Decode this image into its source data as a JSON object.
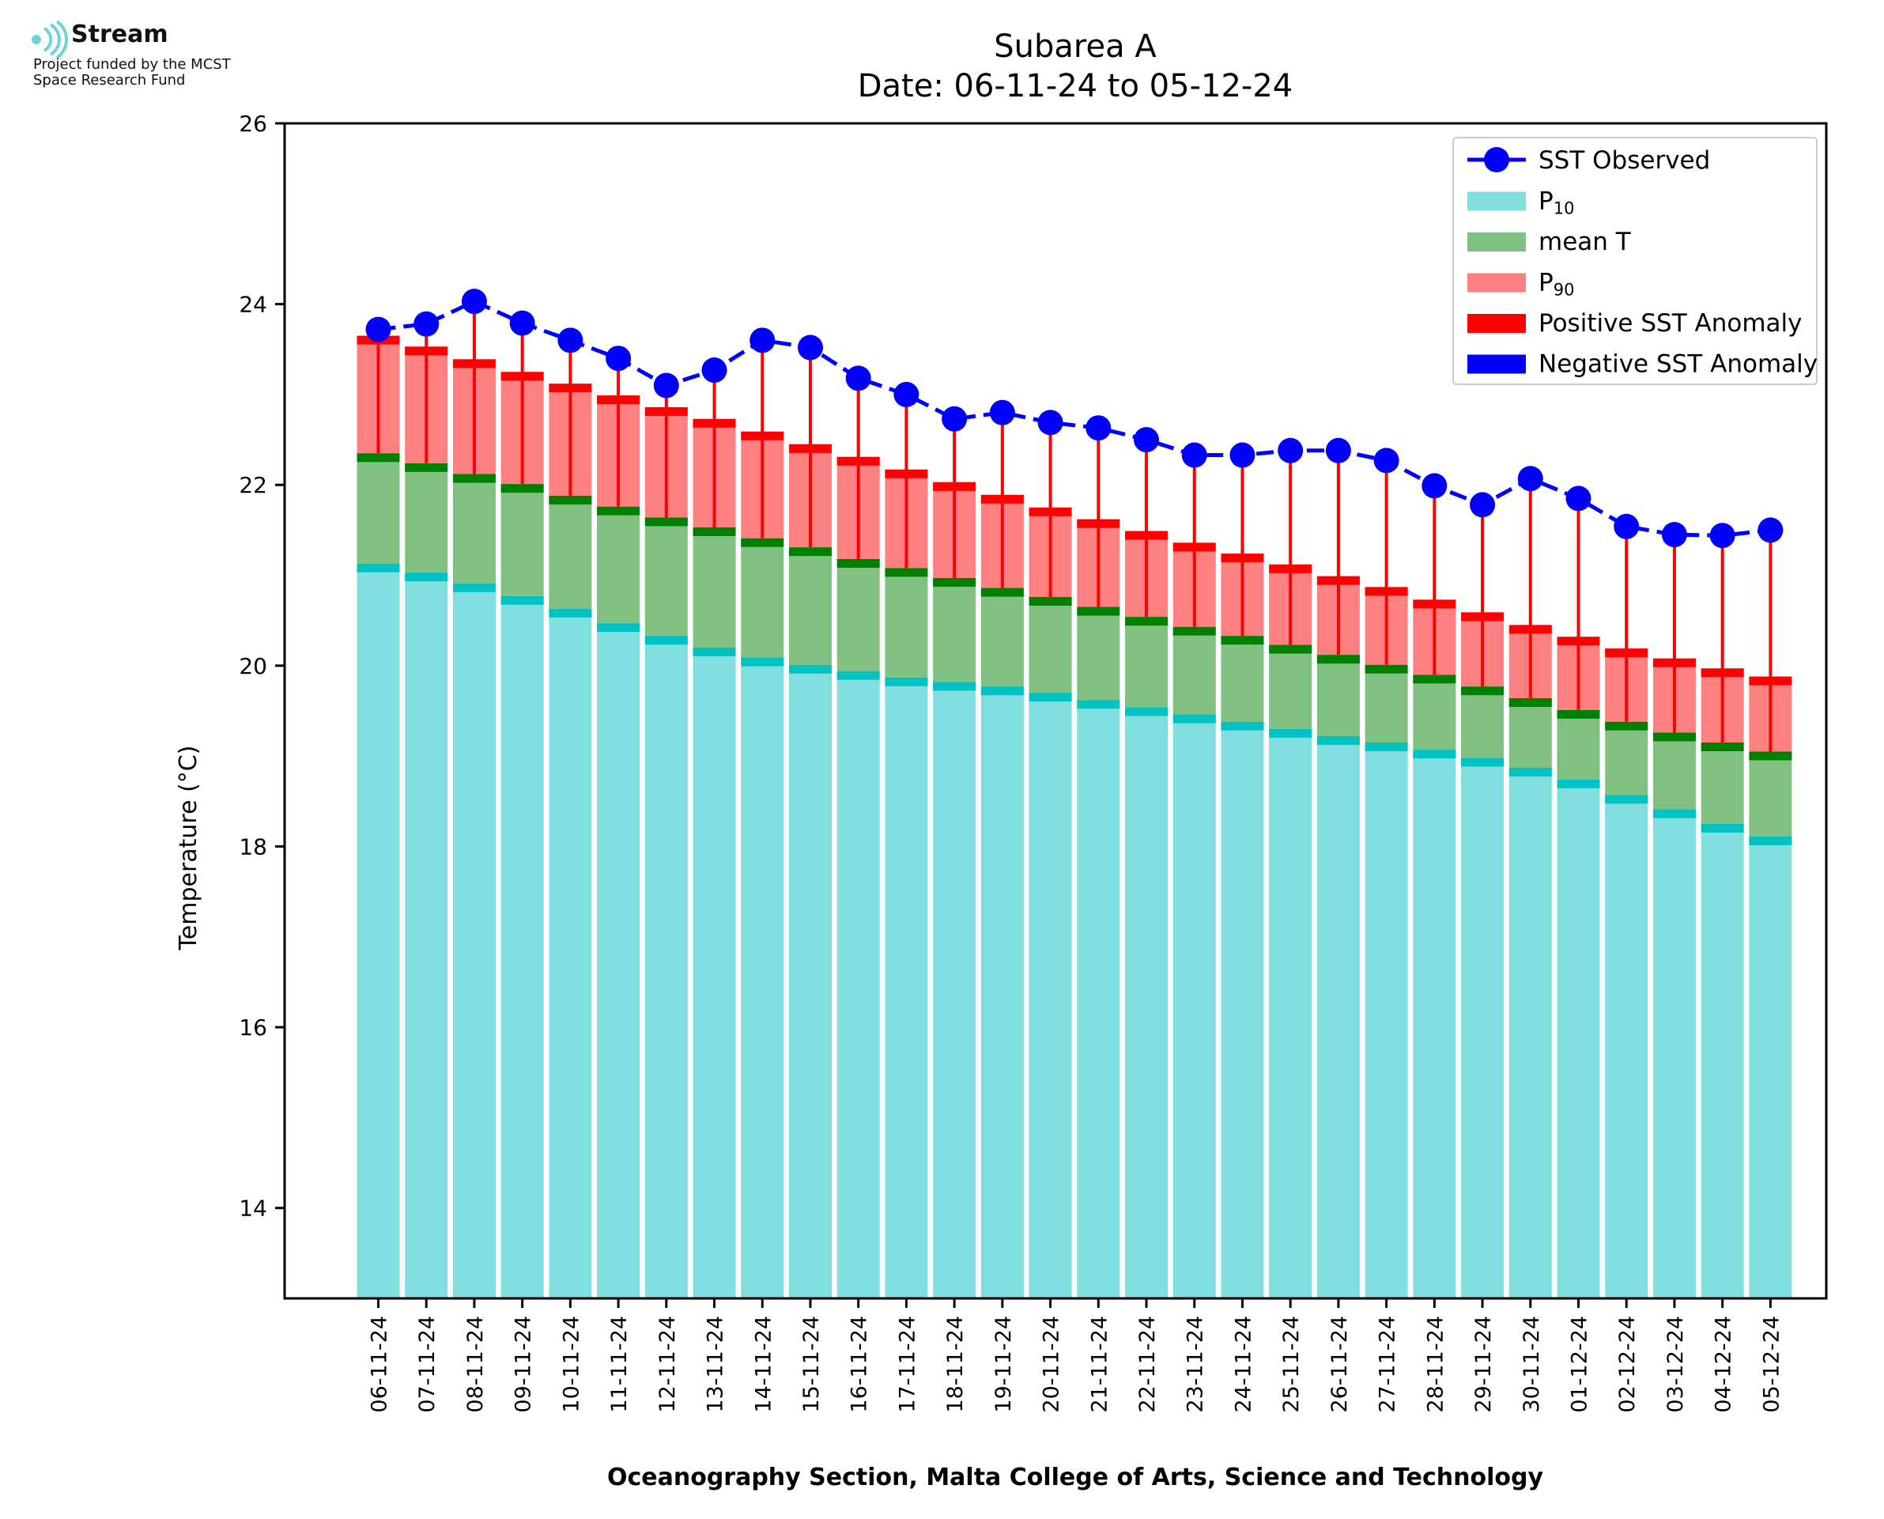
{
  "logo": {
    "name": "Stream",
    "line1": "Project funded by the MCST",
    "line2": "Space Research Fund"
  },
  "chart_data": {
    "type": "bar",
    "title": "Subarea A",
    "subtitle": "Date: 06-11-24 to 05-12-24",
    "xlabel": "Oceanography Section, Malta College of Arts, Science and Technology",
    "ylabel": "Temperature (°C)",
    "ylim": [
      13,
      26
    ],
    "yticks": [
      14,
      16,
      18,
      20,
      22,
      24,
      26
    ],
    "grid": false,
    "legend_position": "top-right",
    "categories": [
      "06-11-24",
      "07-11-24",
      "08-11-24",
      "09-11-24",
      "10-11-24",
      "11-11-24",
      "12-11-24",
      "13-11-24",
      "14-11-24",
      "15-11-24",
      "16-11-24",
      "17-11-24",
      "18-11-24",
      "19-11-24",
      "20-11-24",
      "21-11-24",
      "22-11-24",
      "23-11-24",
      "24-11-24",
      "25-11-24",
      "26-11-24",
      "27-11-24",
      "28-11-24",
      "29-11-24",
      "30-11-24",
      "01-12-24",
      "02-12-24",
      "03-12-24",
      "04-12-24",
      "05-12-24"
    ],
    "series": [
      {
        "name": "SST Observed",
        "kind": "line",
        "color": "#0000ff",
        "values": [
          23.72,
          23.78,
          24.03,
          23.79,
          23.6,
          23.4,
          23.1,
          23.27,
          23.6,
          23.52,
          23.18,
          23.0,
          22.73,
          22.8,
          22.69,
          22.63,
          22.5,
          22.33,
          22.33,
          22.38,
          22.38,
          22.27,
          21.99,
          21.78,
          22.07,
          21.85,
          21.54,
          21.45,
          21.44,
          21.5
        ]
      },
      {
        "name": "P10",
        "kind": "bar",
        "color": "#80deeo",
        "values": [
          21.13,
          21.03,
          20.91,
          20.77,
          20.63,
          20.47,
          20.33,
          20.2,
          20.09,
          20.01,
          19.94,
          19.87,
          19.82,
          19.77,
          19.7,
          19.62,
          19.54,
          19.46,
          19.38,
          19.3,
          19.22,
          19.15,
          19.07,
          18.98,
          18.87,
          18.74,
          18.57,
          18.41,
          18.25,
          18.11
        ]
      },
      {
        "name": "mean T",
        "kind": "bar",
        "color": "#80c080",
        "values": [
          22.35,
          22.24,
          22.12,
          22.01,
          21.88,
          21.76,
          21.64,
          21.53,
          21.41,
          21.31,
          21.18,
          21.08,
          20.97,
          20.86,
          20.76,
          20.65,
          20.54,
          20.43,
          20.33,
          20.23,
          20.12,
          20.01,
          19.9,
          19.77,
          19.64,
          19.51,
          19.38,
          19.26,
          19.15,
          19.05
        ]
      },
      {
        "name": "P90",
        "kind": "bar",
        "color": "#ff8080",
        "values": [
          23.65,
          23.53,
          23.39,
          23.25,
          23.12,
          22.99,
          22.86,
          22.73,
          22.59,
          22.45,
          22.31,
          22.17,
          22.03,
          21.89,
          21.75,
          21.62,
          21.49,
          21.36,
          21.24,
          21.12,
          20.99,
          20.87,
          20.73,
          20.59,
          20.45,
          20.32,
          20.19,
          20.08,
          19.97,
          19.88
        ]
      },
      {
        "name": "Positive SST Anomaly",
        "kind": "errorbar",
        "color": "#ff0000"
      },
      {
        "name": "Negative SST Anomaly",
        "kind": "errorbar",
        "color": "#0000ff"
      }
    ],
    "legend": [
      {
        "label": "SST Observed",
        "sub": "",
        "color": "#0000ff",
        "kind": "line"
      },
      {
        "label": "P",
        "sub": "10",
        "color": "#80dede",
        "kind": "patch"
      },
      {
        "label": "mean T",
        "sub": "",
        "color": "#80c080",
        "kind": "patch"
      },
      {
        "label": "P",
        "sub": "90",
        "color": "#ff8080",
        "kind": "patch"
      },
      {
        "label": "Positive SST Anomaly",
        "sub": "",
        "color": "#ff0000",
        "kind": "patch"
      },
      {
        "label": "Negative SST Anomaly",
        "sub": "",
        "color": "#0000ff",
        "kind": "patch"
      }
    ]
  }
}
